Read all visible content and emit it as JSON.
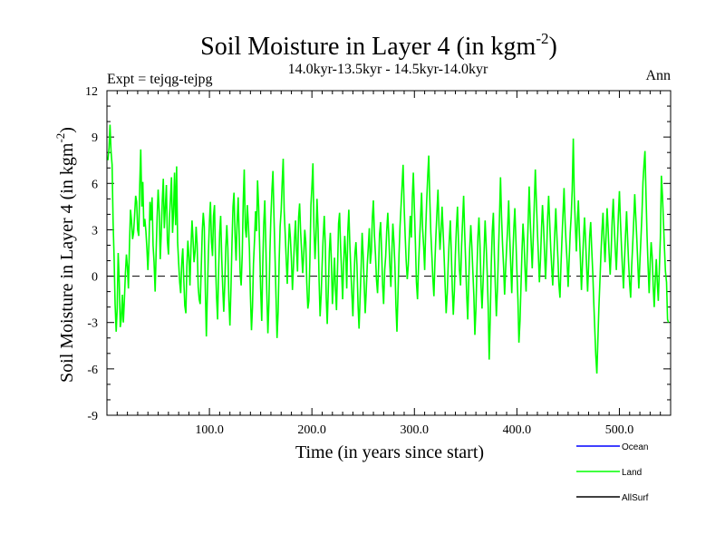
{
  "chart_data": {
    "type": "line",
    "title": "Soil Moisture in Layer 4 (in kgm",
    "title_superscript": "-2",
    "title_close": ")",
    "subtitle": "14.0kyr-13.5kyr - 14.5kyr-14.0kyr",
    "left_label": "Expt = tejqg-tejpg",
    "right_label": "Ann",
    "xlabel": "Time (in years since start)",
    "ylabel": "Soil Moisture in Layer 4 (in kgm",
    "ylabel_superscript": "-2",
    "ylabel_close": ")",
    "xlim": [
      0,
      550
    ],
    "ylim": [
      -9,
      12
    ],
    "xticks": [
      100,
      200,
      300,
      400,
      500
    ],
    "xtick_labels": [
      "100.0",
      "200.0",
      "300.0",
      "400.0",
      "500.0"
    ],
    "yticks": [
      -9,
      -6,
      -3,
      0,
      3,
      6,
      9,
      12
    ],
    "ytick_labels": [
      "-9",
      "-6",
      "-3",
      "0",
      "3",
      "6",
      "9",
      "12"
    ],
    "zero_line": "dashed",
    "legend_position": "bottom-right",
    "series": [
      {
        "name": "Ocean",
        "color": "#0000ff",
        "values": []
      },
      {
        "name": "Land",
        "color": "#00ff00",
        "x_start": 1,
        "x_step": 1,
        "values": [
          7.5,
          8.3,
          9.8,
          8.1,
          7.2,
          3.5,
          1.2,
          -1.8,
          -3.6,
          -2.1,
          1.5,
          -0.4,
          -3.3,
          -2.8,
          -1.2,
          -3.0,
          -1.6,
          0.2,
          1.4,
          0.6,
          -0.8,
          2.1,
          4.3,
          3.6,
          2.4,
          2.8,
          3.9,
          5.2,
          4.8,
          3.0,
          2.6,
          5.9,
          8.2,
          4.5,
          6.1,
          3.2,
          3.7,
          2.9,
          1.8,
          0.4,
          2.2,
          4.8,
          3.6,
          5.1,
          2.0,
          0.9,
          -1.0,
          1.6,
          3.8,
          5.6,
          4.2,
          1.1,
          2.7,
          4.9,
          6.3,
          3.1,
          4.5,
          5.9,
          2.3,
          1.4,
          3.8,
          5.0,
          6.4,
          2.8,
          4.1,
          6.7,
          3.3,
          7.1,
          2.2,
          0.8,
          -0.4,
          -1.1,
          0.9,
          1.8,
          -0.2,
          -1.9,
          -2.4,
          0.6,
          2.3,
          1.2,
          -0.6,
          1.8,
          3.6,
          2.4,
          0.9,
          1.6,
          3.2,
          2.1,
          -0.7,
          -1.5,
          -1.8,
          0.4,
          2.9,
          4.1,
          3.2,
          -0.9,
          -3.9,
          -1.2,
          1.6,
          3.5,
          4.8,
          2.2,
          1.3,
          3.9,
          4.6,
          0.7,
          -1.4,
          -2.8,
          0.5,
          2.8,
          3.9,
          1.1,
          -0.8,
          -2.3,
          -0.4,
          1.9,
          3.3,
          1.8,
          -1.6,
          -3.2,
          -0.9,
          2.2,
          4.5,
          5.4,
          2.6,
          1.0,
          3.4,
          5.1,
          2.7,
          0.2,
          -0.6,
          1.4,
          4.8,
          6.9,
          3.1,
          2.5,
          4.6,
          3.3,
          1.8,
          -1.2,
          -3.5,
          -2.0,
          0.8,
          2.4,
          4.2,
          2.9,
          6.2,
          4.5,
          2.0,
          -0.8,
          -2.9,
          0.6,
          3.3,
          4.9,
          2.1,
          -1.0,
          -3.7,
          -1.8,
          1.5,
          3.8,
          5.6,
          6.8,
          3.9,
          1.2,
          -1.4,
          -4.0,
          -2.3,
          0.9,
          3.2,
          4.3,
          6.1,
          7.6,
          4.2,
          2.6,
          1.0,
          -0.5,
          1.8,
          3.4,
          2.5,
          1.0,
          -0.9,
          0.6,
          2.4,
          3.6,
          1.7,
          0.3,
          3.8,
          4.7,
          2.9,
          1.5,
          0.2,
          1.3,
          3.0,
          2.2,
          -0.4,
          -2.1,
          -1.6,
          0.9,
          4.6,
          5.8,
          7.3,
          3.2,
          1.1,
          2.6,
          5.0,
          3.1,
          -0.3,
          -2.6,
          -1.2,
          0.8,
          2.5,
          3.9,
          2.1,
          -1.4,
          -3.1,
          -0.8,
          1.6,
          2.8,
          0.9,
          -1.8,
          -0.5,
          1.2,
          -0.9,
          -2.2,
          0.6,
          3.4,
          4.1,
          1.9,
          0.2,
          -1.5,
          0.8,
          2.6,
          1.4,
          -0.8,
          2.9,
          4.3,
          2.1,
          0.3,
          -1.2,
          -2.6,
          -0.4,
          1.5,
          2.2,
          0.7,
          -1.9,
          -3.4,
          -1.5,
          0.6,
          2.8,
          1.4,
          -0.6,
          -2.4,
          -1.0,
          0.8,
          1.9,
          3.1,
          0.8,
          1.6,
          3.8,
          4.9,
          2.6,
          1.4,
          -0.2,
          -1.1,
          0.5,
          2.7,
          3.5,
          1.6,
          -0.6,
          -1.8,
          0.4,
          1.3,
          2.9,
          4.1,
          2.6,
          0.8,
          -0.7,
          1.5,
          3.4,
          2.2,
          0.6,
          -1.9,
          -3.6,
          -1.1,
          1.4,
          3.2,
          4.6,
          5.9,
          7.2,
          4.4,
          2.6,
          1.0,
          -0.2,
          0.7,
          2.4,
          3.9,
          2.5,
          5.1,
          6.7,
          4.3,
          2.1,
          -0.4,
          -1.5,
          0.6,
          2.2,
          3.8,
          5.4,
          3.1,
          1.9,
          0.4,
          2.9,
          4.8,
          6.5,
          7.8,
          5.1,
          2.8,
          1.4,
          -0.1,
          -1.3,
          0.9,
          2.6,
          4.2,
          5.6,
          3.3,
          1.7,
          2.9,
          4.5,
          3.0,
          1.2,
          -0.6,
          -2.4,
          -1.1,
          0.8,
          2.3,
          3.6,
          1.5,
          -0.8,
          -2.5,
          -0.9,
          1.4,
          3.1,
          4.5,
          2.2,
          0.4,
          -0.6,
          1.9,
          3.5,
          5.2,
          2.9,
          1.0,
          -1.1,
          -2.8,
          -0.4,
          1.8,
          3.3,
          2.0,
          0.4,
          -1.3,
          -3.8,
          -2.2,
          0.5,
          2.6,
          3.8,
          1.9,
          -0.6,
          -2.1,
          -0.5,
          1.6,
          3.6,
          2.1,
          0.2,
          -2.0,
          -5.4,
          -2.6,
          0.8,
          2.9,
          4.1,
          1.4,
          -0.7,
          -2.6,
          -0.8,
          1.5,
          3.7,
          6.4,
          3.9,
          2.1,
          0.6,
          -1.2,
          0.4,
          1.9,
          3.2,
          4.9,
          2.6,
          0.7,
          -1.1,
          1.2,
          3.1,
          4.4,
          2.5,
          0.3,
          -1.5,
          -4.3,
          -2.9,
          -0.6,
          1.6,
          3.4,
          2.2,
          0.4,
          -1.0,
          1.4,
          3.5,
          5.8,
          3.6,
          2.0,
          0.5,
          2.6,
          4.7,
          6.9,
          4.8,
          2.9,
          1.3,
          -0.4,
          1.1,
          3.0,
          4.6,
          3.2,
          1.5,
          -0.2,
          1.6,
          3.8,
          5.2,
          3.4,
          1.8,
          0.6,
          -0.6,
          1.2,
          2.8,
          4.4,
          2.6,
          1.2,
          -0.5,
          -1.4,
          0.7,
          2.4,
          4.1,
          5.7,
          3.6,
          2.2,
          0.9,
          -0.7,
          1.0,
          2.8,
          3.9,
          5.6,
          8.9,
          5.2,
          3.4,
          1.6,
          3.6,
          4.9,
          2.8,
          1.0,
          -0.9,
          0.8,
          2.5,
          3.8,
          2.4,
          0.6,
          -1.0,
          0.7,
          2.6,
          3.5,
          1.8,
          0.2,
          -1.7,
          -3.4,
          -5.1,
          -6.3,
          -4.2,
          -2.1,
          -0.3,
          1.4,
          2.9,
          4.1,
          2.3,
          0.9,
          2.7,
          4.4,
          3.1,
          1.5,
          0.1,
          1.6,
          3.6,
          5.0,
          3.2,
          1.8,
          0.4,
          2.1,
          3.9,
          5.5,
          3.6,
          2.0,
          0.6,
          -0.8,
          1.0,
          2.6,
          4.2,
          2.5,
          0.9,
          -0.5,
          -1.4,
          0.6,
          2.1,
          3.6,
          5.3,
          3.9,
          2.4,
          0.8,
          -0.8,
          0.9,
          2.4,
          3.9,
          6.1,
          7.2,
          8.1,
          5.1,
          2.6,
          0.7,
          -1.1,
          0.8,
          2.2,
          1.3,
          -0.7,
          -2.0,
          -0.3,
          1.1,
          -0.4,
          -1.6,
          0.5,
          2.5,
          6.5,
          5.2,
          3.5,
          1.8,
          0.3,
          -0.4,
          -2.8,
          -3.0
        ]
      },
      {
        "name": "AllSurf",
        "color": "#000000",
        "values": []
      }
    ],
    "legend": [
      "Ocean",
      "Land",
      "AllSurf"
    ]
  }
}
